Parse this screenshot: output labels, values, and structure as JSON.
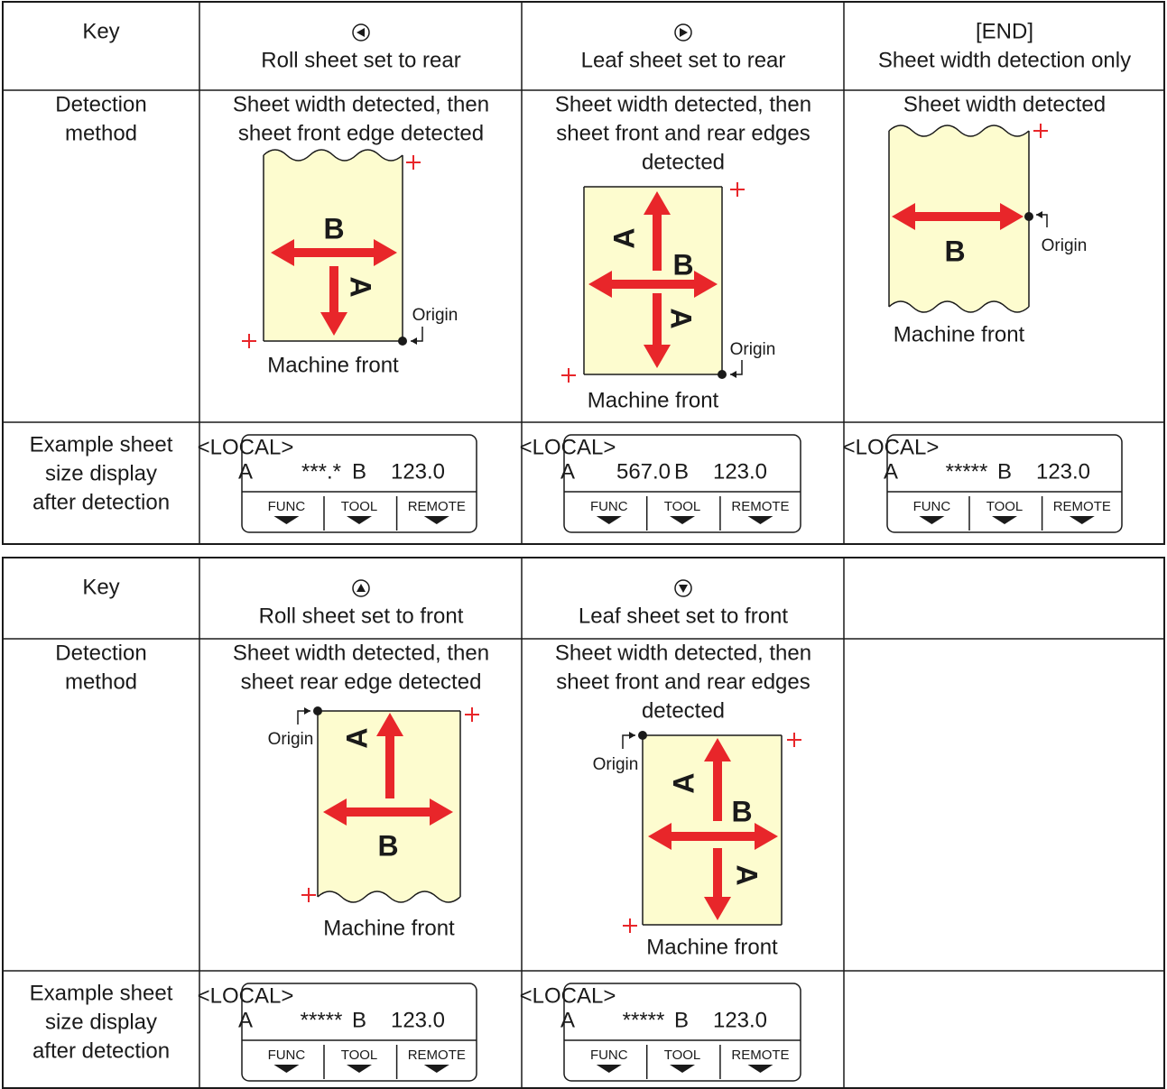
{
  "tables": [
    {
      "row_headers": {
        "key": "Key",
        "detection": [
          "Detection",
          "method"
        ],
        "display": [
          "Example sheet",
          "size display",
          "after detection"
        ]
      },
      "columns": [
        {
          "key": [
            "Roll sheet set to rear"
          ],
          "detection": [
            "Sheet width detected, then",
            "sheet front edge detected"
          ],
          "diagram": {
            "labels": [
              "B",
              "A"
            ],
            "origin": "Origin",
            "front": "Machine front"
          },
          "display": {
            "title": "<LOCAL>",
            "a": "A",
            "a_value": "***.*",
            "b": "B",
            "b_value": "123.0",
            "buttons": [
              "FUNC",
              "TOOL",
              "REMOTE"
            ]
          }
        },
        {
          "key": [
            "Leaf sheet set to rear"
          ],
          "detection": [
            "Sheet width detected, then",
            "sheet front and rear edges",
            "detected"
          ],
          "diagram": {
            "labels": [
              "A",
              "B",
              "A"
            ],
            "origin": "Origin",
            "front": "Machine front"
          },
          "display": {
            "title": "<LOCAL>",
            "a": "A",
            "a_value": "567.0",
            "b": "B",
            "b_value": "123.0",
            "buttons": [
              "FUNC",
              "TOOL",
              "REMOTE"
            ]
          }
        },
        {
          "key": [
            "[END]",
            "Sheet width detection only"
          ],
          "detection": [
            "Sheet width detected"
          ],
          "diagram": {
            "labels": [
              "B"
            ],
            "origin": "Origin",
            "front": "Machine front"
          },
          "display": {
            "title": "<LOCAL>",
            "a": "A",
            "a_value": "*****",
            "b": "B",
            "b_value": "123.0",
            "buttons": [
              "FUNC",
              "TOOL",
              "REMOTE"
            ]
          }
        }
      ]
    },
    {
      "row_headers": {
        "key": "Key",
        "detection": [
          "Detection",
          "method"
        ],
        "display": [
          "Example sheet",
          "size display",
          "after detection"
        ]
      },
      "columns": [
        {
          "key": [
            "Roll sheet set to front"
          ],
          "detection": [
            "Sheet width detected, then",
            "sheet rear edge detected"
          ],
          "diagram": {
            "labels": [
              "A",
              "B"
            ],
            "origin": "Origin",
            "front": "Machine front"
          },
          "display": {
            "title": "<LOCAL>",
            "a": "A",
            "a_value": "*****",
            "b": "B",
            "b_value": "123.0",
            "buttons": [
              "FUNC",
              "TOOL",
              "REMOTE"
            ]
          }
        },
        {
          "key": [
            "Leaf sheet set to front"
          ],
          "detection": [
            "Sheet width detected, then",
            "sheet front and rear edges",
            "detected"
          ],
          "diagram": {
            "labels": [
              "A",
              "B",
              "A"
            ],
            "origin": "Origin",
            "front": "Machine front"
          },
          "display": {
            "title": "<LOCAL>",
            "a": "A",
            "a_value": "*****",
            "b": "B",
            "b_value": "123.0",
            "buttons": [
              "FUNC",
              "TOOL",
              "REMOTE"
            ]
          }
        }
      ]
    }
  ]
}
